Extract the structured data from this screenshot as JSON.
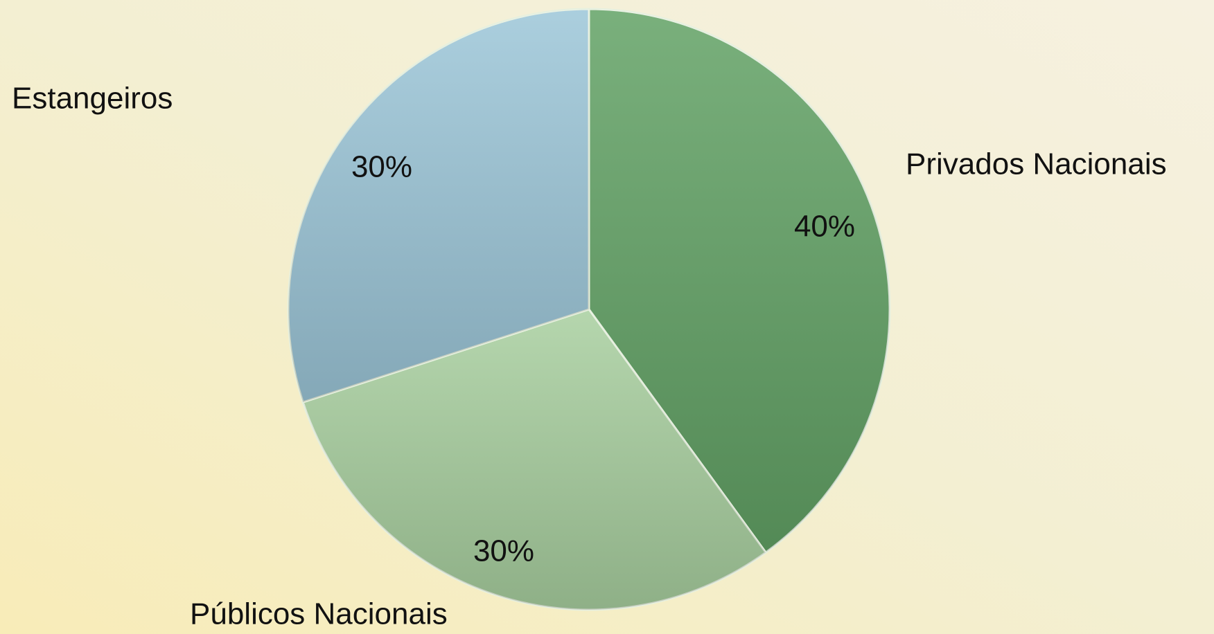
{
  "chart_data": {
    "type": "pie",
    "categories": [
      "Privados Nacionais",
      "Públicos Nacionais",
      "Estangeiros"
    ],
    "values": [
      40,
      30,
      30
    ],
    "value_labels": [
      "40%",
      "30%",
      "30%"
    ],
    "colors": [
      "#62a265",
      "#a8cf9f",
      "#9cc6d8"
    ]
  }
}
